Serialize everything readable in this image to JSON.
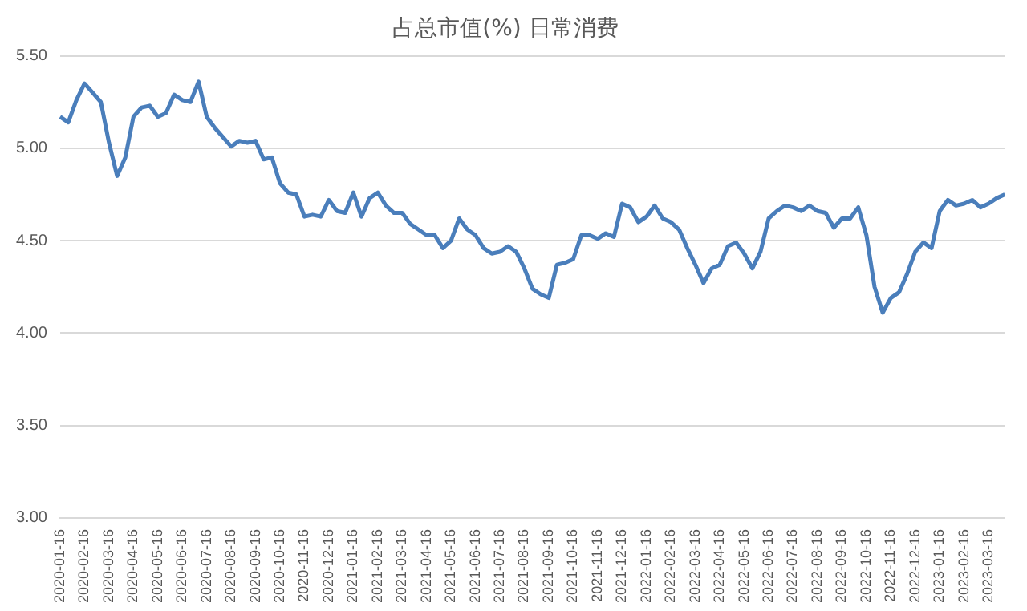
{
  "chart_data": {
    "type": "line",
    "title": "占总市值(%) 日常消费",
    "categories": [
      "2020-01-16",
      null,
      null,
      "2020-02-16",
      null,
      null,
      "2020-03-16",
      null,
      null,
      "2020-04-16",
      null,
      null,
      "2020-05-16",
      null,
      null,
      "2020-06-16",
      null,
      null,
      "2020-07-16",
      null,
      null,
      "2020-08-16",
      null,
      null,
      "2020-09-16",
      null,
      null,
      "2020-10-16",
      null,
      null,
      "2020-11-16",
      null,
      null,
      "2020-12-16",
      null,
      null,
      "2021-01-16",
      null,
      null,
      "2021-02-16",
      null,
      null,
      "2021-03-16",
      null,
      null,
      "2021-04-16",
      null,
      null,
      "2021-05-16",
      null,
      null,
      "2021-06-16",
      null,
      null,
      "2021-07-16",
      null,
      null,
      "2021-08-16",
      null,
      null,
      "2021-09-16",
      null,
      null,
      "2021-10-16",
      null,
      null,
      "2021-11-16",
      null,
      null,
      "2021-12-16",
      null,
      null,
      "2022-01-16",
      null,
      null,
      "2022-02-16",
      null,
      null,
      "2022-03-16",
      null,
      null,
      "2022-04-16",
      null,
      null,
      "2022-05-16",
      null,
      null,
      "2022-06-16",
      null,
      null,
      "2022-07-16",
      null,
      null,
      "2022-08-16",
      null,
      null,
      "2022-09-16",
      null,
      null,
      "2022-10-16",
      null,
      null,
      "2022-11-16",
      null,
      null,
      "2022-12-16",
      null,
      null,
      "2023-01-16",
      null,
      null,
      "2023-02-16",
      null,
      null,
      "2023-03-16",
      null,
      null
    ],
    "series": [
      {
        "color": "#4a7ebb",
        "values": [
          5.17,
          5.14,
          5.26,
          5.35,
          5.3,
          5.25,
          5.03,
          4.85,
          4.95,
          5.17,
          5.22,
          5.23,
          5.17,
          5.19,
          5.29,
          5.26,
          5.25,
          5.36,
          5.17,
          5.11,
          5.06,
          5.01,
          5.04,
          5.03,
          5.04,
          4.94,
          4.95,
          4.81,
          4.76,
          4.75,
          4.63,
          4.64,
          4.63,
          4.72,
          4.66,
          4.65,
          4.76,
          4.63,
          4.73,
          4.76,
          4.69,
          4.65,
          4.65,
          4.59,
          4.56,
          4.53,
          4.53,
          4.46,
          4.5,
          4.62,
          4.56,
          4.53,
          4.46,
          4.43,
          4.44,
          4.47,
          4.44,
          4.35,
          4.24,
          4.21,
          4.19,
          4.37,
          4.38,
          4.4,
          4.53,
          4.53,
          4.51,
          4.54,
          4.52,
          4.7,
          4.68,
          4.6,
          4.63,
          4.69,
          4.62,
          4.6,
          4.56,
          4.46,
          4.37,
          4.27,
          4.35,
          4.37,
          4.47,
          4.49,
          4.43,
          4.35,
          4.44,
          4.62,
          4.66,
          4.69,
          4.68,
          4.66,
          4.69,
          4.66,
          4.65,
          4.57,
          4.62,
          4.62,
          4.68,
          4.53,
          4.25,
          4.11,
          4.19,
          4.22,
          4.32,
          4.44,
          4.49,
          4.46,
          4.66,
          4.72,
          4.69,
          4.7,
          4.72,
          4.68,
          4.7,
          4.73,
          4.75
        ]
      }
    ],
    "ylim": [
      3,
      5.5
    ],
    "yticks": [
      {
        "value": 3,
        "label": "3.00"
      },
      {
        "value": 3.5,
        "label": "3.50"
      },
      {
        "value": 4,
        "label": "4.00"
      },
      {
        "value": 4.5,
        "label": "4.50"
      },
      {
        "value": 5,
        "label": "5.00"
      },
      {
        "value": 5.5,
        "label": "5.50"
      }
    ],
    "grid": "y",
    "legend": false,
    "marker": "none",
    "line_style": "solid"
  }
}
